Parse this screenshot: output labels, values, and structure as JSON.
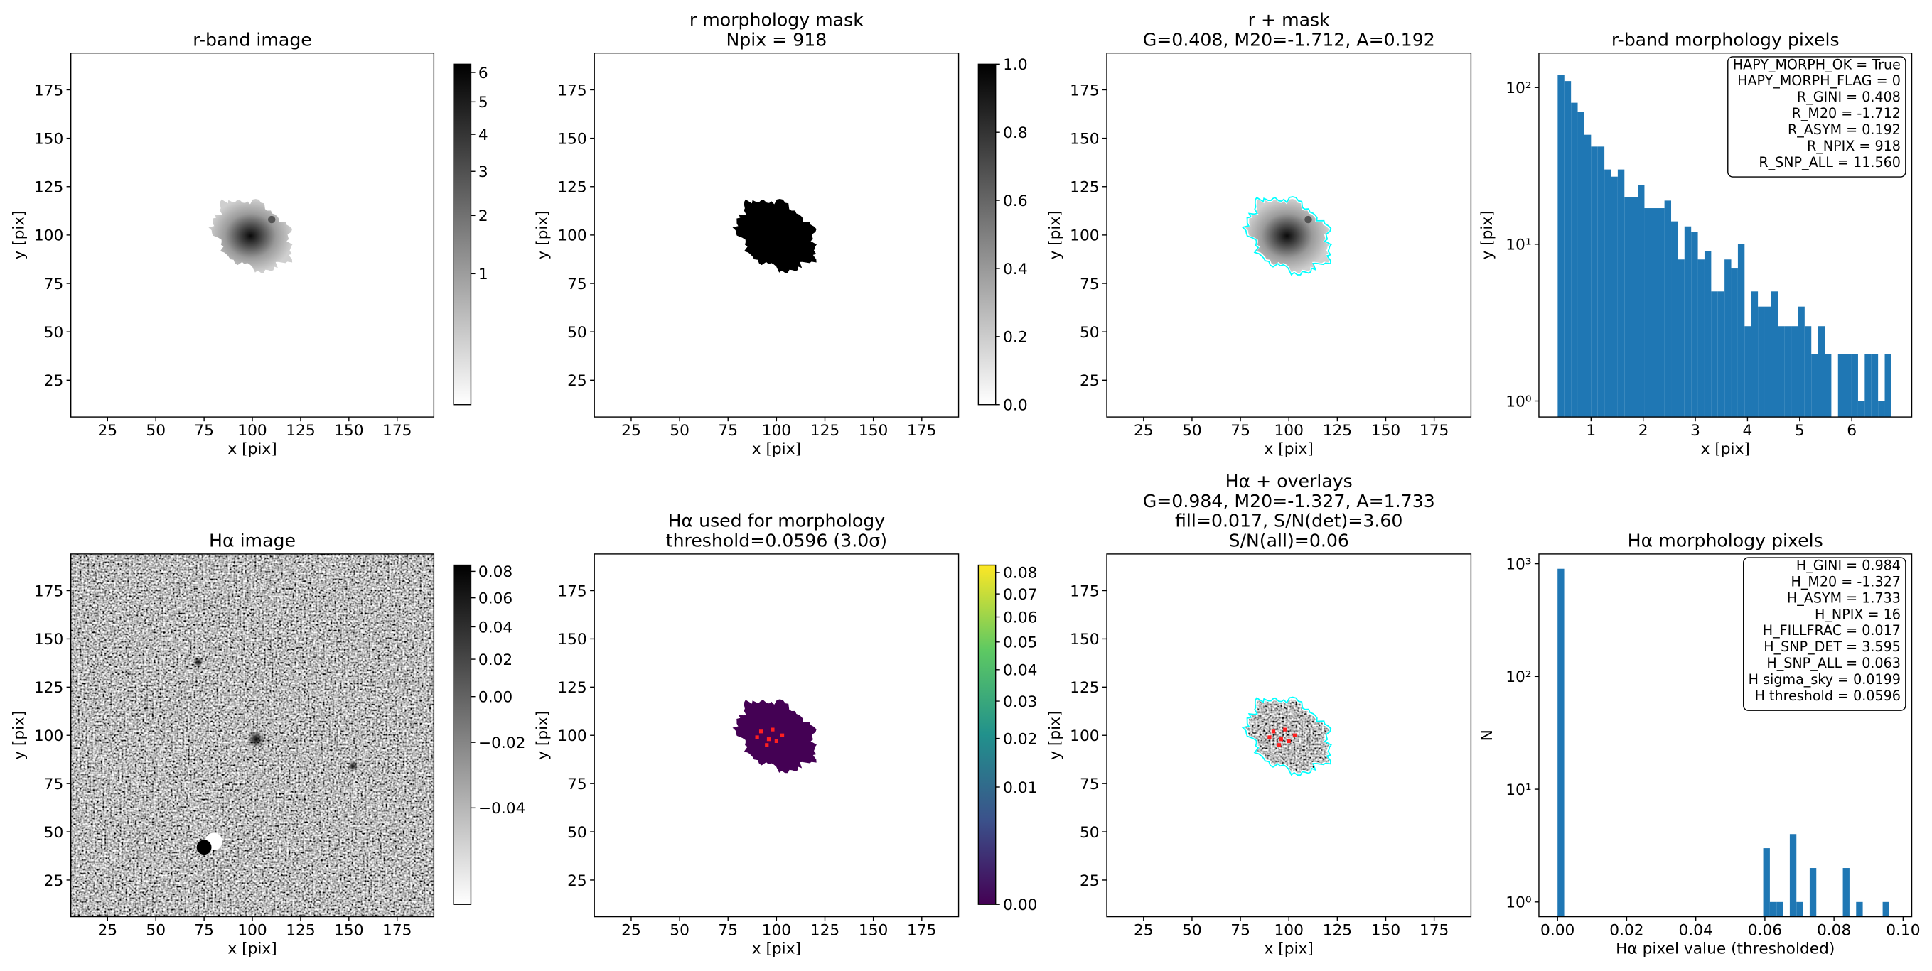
{
  "chart_data": [
    {
      "type": "image",
      "title": [
        "r-band image"
      ],
      "xlabel": "x [pix]",
      "ylabel": "y [pix]",
      "xlim": [
        6,
        194
      ],
      "ylim": [
        6,
        194
      ],
      "xticks": [
        25,
        50,
        75,
        100,
        125,
        150,
        175
      ],
      "yticks": [
        25,
        50,
        75,
        100,
        125,
        150,
        175
      ],
      "colorbar": {
        "colors": [
          "#ffffff",
          "#000000"
        ],
        "scale": "sqrt",
        "clim": [
          0.08,
          6.3
        ],
        "ticks": [
          1,
          2,
          3,
          4,
          5,
          6
        ]
      }
    },
    {
      "type": "image",
      "title": [
        "r morphology mask",
        "Npix = 918"
      ],
      "xlabel": "x [pix]",
      "ylabel": "y [pix]",
      "xlim": [
        6,
        194
      ],
      "ylim": [
        6,
        194
      ],
      "xticks": [
        25,
        50,
        75,
        100,
        125,
        150,
        175
      ],
      "yticks": [
        25,
        50,
        75,
        100,
        125,
        150,
        175
      ],
      "colorbar": {
        "colors": [
          "#ffffff",
          "#000000"
        ],
        "scale": "linear",
        "clim": [
          0,
          1
        ],
        "ticks": [
          {
            "value": 0,
            "label": "0.0"
          },
          0.2,
          0.4,
          0.6,
          0.8,
          {
            "value": 1,
            "label": "1.0"
          }
        ]
      }
    },
    {
      "type": "image",
      "title": [
        "r + mask",
        "G=0.408, M20=-1.712, A=0.192"
      ],
      "xlabel": "x [pix]",
      "ylabel": "y [pix]",
      "xlim": [
        6,
        194
      ],
      "ylim": [
        6,
        194
      ],
      "xticks": [
        25,
        50,
        75,
        100,
        125,
        150,
        175
      ],
      "yticks": [
        25,
        50,
        75,
        100,
        125,
        150,
        175
      ]
    },
    {
      "type": "histogram",
      "title": [
        "r-band morphology pixels"
      ],
      "xlabel": "x [pix]",
      "ylabel": "y [pix]",
      "color": "#1f77b4",
      "yscale": "log",
      "xlim": [
        0,
        7.15
      ],
      "ylim": [
        0.79,
        166
      ],
      "xticks": [
        1,
        2,
        3,
        4,
        5,
        6
      ],
      "yticks": [
        {
          "value": 1,
          "label": "10⁰"
        },
        {
          "value": 10,
          "label": "10¹"
        },
        {
          "value": 100,
          "label": "10²"
        }
      ],
      "bins": [
        0.36,
        0.488,
        0.616,
        0.744,
        0.872,
        1.0,
        1.128,
        1.256,
        1.384,
        1.512,
        1.64,
        1.768,
        1.896,
        2.024,
        2.152,
        2.28,
        2.408,
        2.536,
        2.664,
        2.792,
        2.92,
        3.048,
        3.176,
        3.304,
        3.432,
        3.56,
        3.688,
        3.816,
        3.944,
        4.072,
        4.2,
        4.328,
        4.456,
        4.584,
        4.712,
        4.84,
        4.968,
        5.096,
        5.224,
        5.352,
        5.48,
        5.608,
        5.736,
        5.864,
        5.992,
        6.12,
        6.248,
        6.376,
        6.504,
        6.632,
        6.76
      ],
      "counts": [
        120,
        110,
        80,
        70,
        50,
        42,
        42,
        30,
        27,
        30,
        20,
        20,
        24,
        17,
        17,
        17,
        19,
        14,
        8,
        13,
        12,
        8,
        9,
        5,
        5,
        8,
        7,
        10,
        3,
        5,
        4,
        4,
        5,
        3,
        3,
        3,
        4,
        3,
        2,
        3,
        2,
        0,
        2,
        2,
        2,
        1,
        2,
        2,
        1,
        2
      ],
      "annotation": [
        "HAPY_MORPH_OK = True",
        "HAPY_MORPH_FLAG = 0",
        "R_GINI = 0.408",
        "R_M20 = -1.712",
        "R_ASYM = 0.192",
        "R_NPIX = 918",
        "R_SNP_ALL = 11.560"
      ]
    },
    {
      "type": "image",
      "title": [
        "Hα image"
      ],
      "xlabel": "x [pix]",
      "ylabel": "y [pix]",
      "xlim": [
        6,
        194
      ],
      "ylim": [
        6,
        194
      ],
      "xticks": [
        25,
        50,
        75,
        100,
        125,
        150,
        175
      ],
      "yticks": [
        25,
        50,
        75,
        100,
        125,
        150,
        175
      ],
      "colorbar": {
        "colors": [
          "#ffffff",
          "#000000"
        ],
        "scale": "sqrt",
        "clim": [
          -0.051,
          0.085
        ],
        "ticks": [
          0.08,
          0.06,
          0.04,
          0.02,
          {
            "value": 0,
            "label": "0.00"
          },
          {
            "value": -0.02,
            "label": "−0.02"
          },
          {
            "value": -0.04,
            "label": "−0.04"
          }
        ]
      }
    },
    {
      "type": "image",
      "title": [
        "Hα used for morphology",
        "threshold=0.0596 (3.0σ)"
      ],
      "xlabel": "x [pix]",
      "ylabel": "y [pix]",
      "xlim": [
        6,
        194
      ],
      "ylim": [
        6,
        194
      ],
      "xticks": [
        25,
        50,
        75,
        100,
        125,
        150,
        175
      ],
      "yticks": [
        25,
        50,
        75,
        100,
        125,
        150,
        175
      ],
      "colorbar": {
        "colors": [
          "#440154",
          "#3b528b",
          "#21918c",
          "#5ec962",
          "#fde725"
        ],
        "scale": "sqrt",
        "clim": [
          0,
          0.0836
        ],
        "ticks": [
          {
            "value": 0,
            "label": "0.00"
          },
          0.01,
          0.02,
          0.03,
          0.04,
          0.05,
          0.06,
          0.07,
          0.08
        ]
      }
    },
    {
      "type": "image",
      "title": [
        "Hα + overlays",
        "G=0.984, M20=-1.327, A=1.733",
        "fill=0.017, S/N(det)=3.60",
        "S/N(all)=0.06"
      ],
      "xlabel": "x [pix]",
      "ylabel": "y [pix]",
      "xlim": [
        6,
        194
      ],
      "ylim": [
        6,
        194
      ],
      "xticks": [
        25,
        50,
        75,
        100,
        125,
        150,
        175
      ],
      "yticks": [
        25,
        50,
        75,
        100,
        125,
        150,
        175
      ]
    },
    {
      "type": "histogram",
      "title": [
        "Hα morphology pixels"
      ],
      "xlabel": "Hα pixel value (thresholded)",
      "ylabel": "N",
      "color": "#1f77b4",
      "yscale": "log",
      "xlim": [
        -0.0054,
        0.1025
      ],
      "ylim": [
        0.74,
        1220
      ],
      "xticks": [
        {
          "value": 0,
          "label": "0.00"
        },
        0.02,
        0.04,
        0.06,
        0.08,
        {
          "value": 0.1,
          "label": "0.10"
        }
      ],
      "yticks": [
        {
          "value": 1,
          "label": "10⁰"
        },
        {
          "value": 10,
          "label": "10¹"
        },
        {
          "value": 100,
          "label": "10²"
        },
        {
          "value": 1000,
          "label": "10³"
        }
      ],
      "bins": [
        0,
        0.00192,
        0.00384,
        0.00576,
        0.00768,
        0.0096,
        0.01152,
        0.01344,
        0.01536,
        0.01728,
        0.0192,
        0.02112,
        0.02304,
        0.02496,
        0.02688,
        0.0288,
        0.03072,
        0.03264,
        0.03456,
        0.03648,
        0.0384,
        0.04032,
        0.04224,
        0.04416,
        0.04608,
        0.048,
        0.04992,
        0.05184,
        0.05376,
        0.05568,
        0.0576,
        0.05952,
        0.06144,
        0.06336,
        0.06528,
        0.0672,
        0.06912,
        0.07104,
        0.07296,
        0.07488,
        0.0768,
        0.07872,
        0.08064,
        0.08256,
        0.08448,
        0.0864,
        0.08832,
        0.09024,
        0.09216,
        0.09408,
        0.096
      ],
      "counts": [
        902,
        0,
        0,
        0,
        0,
        0,
        0,
        0,
        0,
        0,
        0,
        0,
        0,
        0,
        0,
        0,
        0,
        0,
        0,
        0,
        0,
        0,
        0,
        0,
        0,
        0,
        0,
        0,
        0,
        0,
        0,
        3,
        1,
        1,
        0,
        4,
        1,
        0,
        2,
        0,
        0,
        0,
        0,
        2,
        0,
        1,
        0,
        0,
        0,
        1
      ],
      "annotation": [
        "H_GINI = 0.984",
        "H_M20 = -1.327",
        "H_ASYM = 1.733",
        "H_NPIX = 16",
        "H_FILLFRAC = 0.017",
        "H_SNP_DET = 3.595",
        "H_SNP_ALL = 0.063",
        "H sigma_sky = 0.0199",
        "H threshold = 0.0596"
      ]
    }
  ]
}
